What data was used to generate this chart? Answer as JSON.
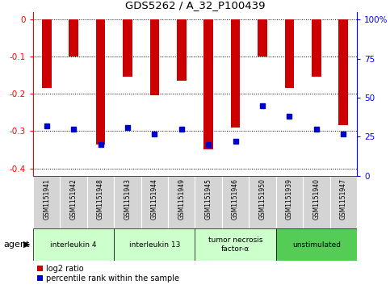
{
  "title": "GDS5262 / A_32_P100439",
  "samples": [
    "GSM1151941",
    "GSM1151942",
    "GSM1151948",
    "GSM1151943",
    "GSM1151944",
    "GSM1151949",
    "GSM1151945",
    "GSM1151946",
    "GSM1151950",
    "GSM1151939",
    "GSM1151940",
    "GSM1151947"
  ],
  "log2_ratio": [
    -0.185,
    -0.1,
    -0.335,
    -0.155,
    -0.205,
    -0.165,
    -0.35,
    -0.29,
    -0.1,
    -0.185,
    -0.155,
    -0.285
  ],
  "percentile_rank": [
    32,
    30,
    20,
    31,
    27,
    30,
    20,
    22,
    45,
    38,
    30,
    27
  ],
  "group_labels": [
    "interleukin 4",
    "interleukin 13",
    "tumor necrosis\nfactor-α",
    "unstimulated"
  ],
  "group_ranges": [
    [
      0,
      2
    ],
    [
      3,
      5
    ],
    [
      6,
      8
    ],
    [
      9,
      11
    ]
  ],
  "group_colors": [
    "#ccffcc",
    "#ccffcc",
    "#ccffcc",
    "#55cc55"
  ],
  "ylim_left": [
    -0.42,
    0.02
  ],
  "ylim_right": [
    0,
    105
  ],
  "bar_color": "#cc0000",
  "dot_color": "#0000cc",
  "bg_color": "#ffffff",
  "agent_label": "agent",
  "legend_items": [
    "log2 ratio",
    "percentile rank within the sample"
  ],
  "left_ticks": [
    0,
    -0.1,
    -0.2,
    -0.3,
    -0.4
  ],
  "right_ticks": [
    0,
    25,
    50,
    75,
    100
  ]
}
